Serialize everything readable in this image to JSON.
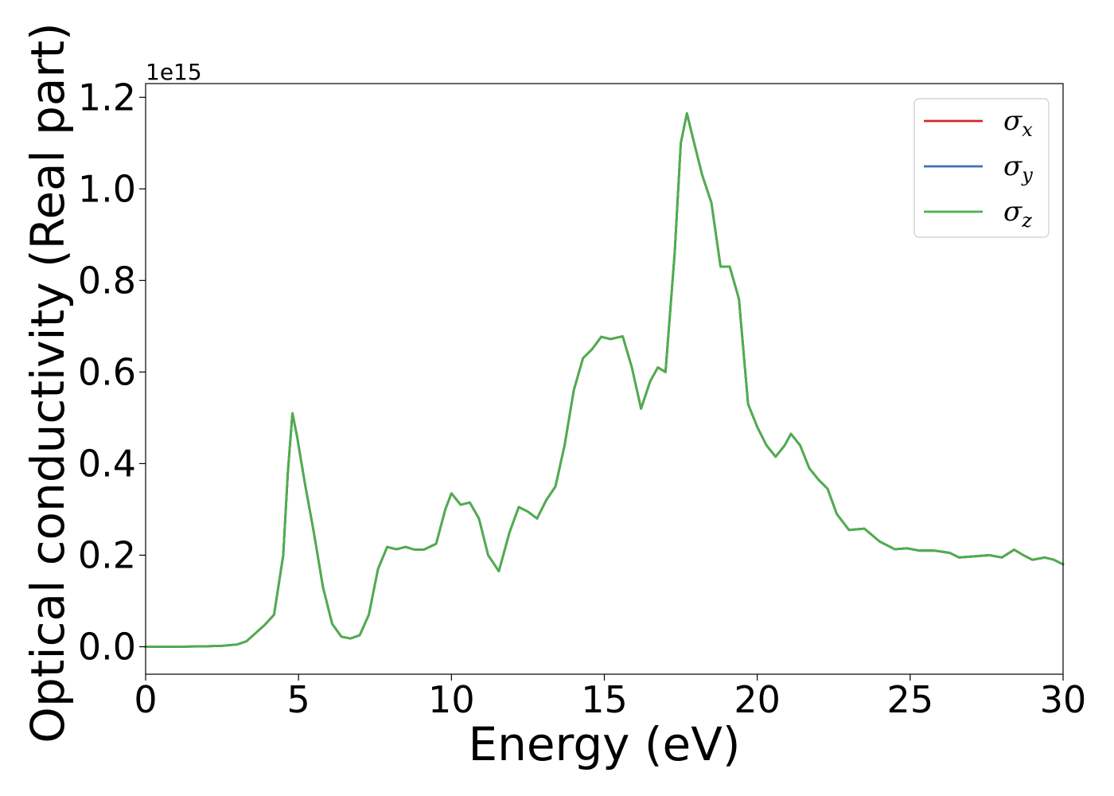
{
  "chart_data": {
    "type": "line",
    "xlabel": "Energy (eV)",
    "ylabel": "Optical conductivity (Real part)",
    "y_offset_text": "1e15",
    "y_scale_factor": 1000000000000000.0,
    "xlim": [
      0,
      30
    ],
    "ylim": [
      -0.06,
      1.23
    ],
    "x_ticks": [
      0,
      5,
      10,
      15,
      20,
      25,
      30
    ],
    "x_tick_labels": [
      "0",
      "5",
      "10",
      "15",
      "20",
      "25",
      "30"
    ],
    "y_ticks": [
      0.0,
      0.2,
      0.4,
      0.6,
      0.8,
      1.0,
      1.2
    ],
    "y_tick_labels": [
      "0.0",
      "0.2",
      "0.4",
      "0.6",
      "0.8",
      "1.0",
      "1.2"
    ],
    "grid": false,
    "legend_position": "top-right",
    "series": [
      {
        "legend_symbol": "σ",
        "legend_subscript": "x",
        "color": "#d62728",
        "x": [
          0,
          1,
          2,
          2.5,
          3,
          3.3,
          3.6,
          3.9,
          4.2,
          4.5,
          4.65,
          4.8,
          4.95,
          5.2,
          5.5,
          5.8,
          6.1,
          6.4,
          6.7,
          7.0,
          7.3,
          7.6,
          7.9,
          8.2,
          8.5,
          8.8,
          9.1,
          9.5,
          9.8,
          10.0,
          10.3,
          10.6,
          10.9,
          11.2,
          11.55,
          11.9,
          12.2,
          12.5,
          12.8,
          13.1,
          13.4,
          13.7,
          14.0,
          14.3,
          14.6,
          14.9,
          15.2,
          15.6,
          15.9,
          16.2,
          16.5,
          16.75,
          17.0,
          17.3,
          17.5,
          17.7,
          17.9,
          18.2,
          18.5,
          18.8,
          19.1,
          19.4,
          19.7,
          20.0,
          20.3,
          20.6,
          20.9,
          21.1,
          21.4,
          21.7,
          22.0,
          22.3,
          22.6,
          23.0,
          23.5,
          24.0,
          24.5,
          24.9,
          25.3,
          25.8,
          26.3,
          26.6,
          27.0,
          27.6,
          28.0,
          28.4,
          28.7,
          29.0,
          29.4,
          29.7,
          30.0
        ],
        "y": [
          0.0,
          0.0,
          0.001,
          0.002,
          0.005,
          0.012,
          0.03,
          0.048,
          0.07,
          0.2,
          0.38,
          0.51,
          0.46,
          0.36,
          0.25,
          0.13,
          0.05,
          0.022,
          0.018,
          0.025,
          0.07,
          0.17,
          0.218,
          0.213,
          0.218,
          0.212,
          0.212,
          0.225,
          0.3,
          0.335,
          0.31,
          0.315,
          0.28,
          0.2,
          0.165,
          0.25,
          0.305,
          0.295,
          0.28,
          0.32,
          0.35,
          0.44,
          0.56,
          0.63,
          0.65,
          0.677,
          0.672,
          0.678,
          0.61,
          0.52,
          0.58,
          0.61,
          0.6,
          0.86,
          1.1,
          1.165,
          1.11,
          1.03,
          0.97,
          0.83,
          0.83,
          0.76,
          0.53,
          0.48,
          0.44,
          0.415,
          0.44,
          0.465,
          0.44,
          0.39,
          0.365,
          0.345,
          0.29,
          0.255,
          0.258,
          0.23,
          0.213,
          0.215,
          0.21,
          0.21,
          0.205,
          0.195,
          0.197,
          0.2,
          0.195,
          0.212,
          0.2,
          0.19,
          0.195,
          0.19,
          0.18
        ]
      },
      {
        "legend_symbol": "σ",
        "legend_subscript": "y",
        "color": "#3b75af",
        "x": [
          0,
          1,
          2,
          2.5,
          3,
          3.3,
          3.6,
          3.9,
          4.2,
          4.5,
          4.65,
          4.8,
          4.95,
          5.2,
          5.5,
          5.8,
          6.1,
          6.4,
          6.7,
          7.0,
          7.3,
          7.6,
          7.9,
          8.2,
          8.5,
          8.8,
          9.1,
          9.5,
          9.8,
          10.0,
          10.3,
          10.6,
          10.9,
          11.2,
          11.55,
          11.9,
          12.2,
          12.5,
          12.8,
          13.1,
          13.4,
          13.7,
          14.0,
          14.3,
          14.6,
          14.9,
          15.2,
          15.6,
          15.9,
          16.2,
          16.5,
          16.75,
          17.0,
          17.3,
          17.5,
          17.7,
          17.9,
          18.2,
          18.5,
          18.8,
          19.1,
          19.4,
          19.7,
          20.0,
          20.3,
          20.6,
          20.9,
          21.1,
          21.4,
          21.7,
          22.0,
          22.3,
          22.6,
          23.0,
          23.5,
          24.0,
          24.5,
          24.9,
          25.3,
          25.8,
          26.3,
          26.6,
          27.0,
          27.6,
          28.0,
          28.4,
          28.7,
          29.0,
          29.4,
          29.7,
          30.0
        ],
        "y": [
          0.0,
          0.0,
          0.001,
          0.002,
          0.005,
          0.012,
          0.03,
          0.048,
          0.07,
          0.2,
          0.38,
          0.51,
          0.46,
          0.36,
          0.25,
          0.13,
          0.05,
          0.022,
          0.018,
          0.025,
          0.07,
          0.17,
          0.218,
          0.213,
          0.218,
          0.212,
          0.212,
          0.225,
          0.3,
          0.335,
          0.31,
          0.315,
          0.28,
          0.2,
          0.165,
          0.25,
          0.305,
          0.295,
          0.28,
          0.32,
          0.35,
          0.44,
          0.56,
          0.63,
          0.65,
          0.677,
          0.672,
          0.678,
          0.61,
          0.52,
          0.58,
          0.61,
          0.6,
          0.86,
          1.1,
          1.165,
          1.11,
          1.03,
          0.97,
          0.83,
          0.83,
          0.76,
          0.53,
          0.48,
          0.44,
          0.415,
          0.44,
          0.465,
          0.44,
          0.39,
          0.365,
          0.345,
          0.29,
          0.255,
          0.258,
          0.23,
          0.213,
          0.215,
          0.21,
          0.21,
          0.205,
          0.195,
          0.197,
          0.2,
          0.195,
          0.212,
          0.2,
          0.19,
          0.195,
          0.19,
          0.18
        ]
      },
      {
        "legend_symbol": "σ",
        "legend_subscript": "z",
        "color": "#4daf4a",
        "x": [
          0,
          1,
          2,
          2.5,
          3,
          3.3,
          3.6,
          3.9,
          4.2,
          4.5,
          4.65,
          4.8,
          4.95,
          5.2,
          5.5,
          5.8,
          6.1,
          6.4,
          6.7,
          7.0,
          7.3,
          7.6,
          7.9,
          8.2,
          8.5,
          8.8,
          9.1,
          9.5,
          9.8,
          10.0,
          10.3,
          10.6,
          10.9,
          11.2,
          11.55,
          11.9,
          12.2,
          12.5,
          12.8,
          13.1,
          13.4,
          13.7,
          14.0,
          14.3,
          14.6,
          14.9,
          15.2,
          15.6,
          15.9,
          16.2,
          16.5,
          16.75,
          17.0,
          17.3,
          17.5,
          17.7,
          17.9,
          18.2,
          18.5,
          18.8,
          19.1,
          19.4,
          19.7,
          20.0,
          20.3,
          20.6,
          20.9,
          21.1,
          21.4,
          21.7,
          22.0,
          22.3,
          22.6,
          23.0,
          23.5,
          24.0,
          24.5,
          24.9,
          25.3,
          25.8,
          26.3,
          26.6,
          27.0,
          27.6,
          28.0,
          28.4,
          28.7,
          29.0,
          29.4,
          29.7,
          30.0
        ],
        "y": [
          0.0,
          0.0,
          0.001,
          0.002,
          0.005,
          0.012,
          0.03,
          0.048,
          0.07,
          0.2,
          0.38,
          0.51,
          0.46,
          0.36,
          0.25,
          0.13,
          0.05,
          0.022,
          0.018,
          0.025,
          0.07,
          0.17,
          0.218,
          0.213,
          0.218,
          0.212,
          0.212,
          0.225,
          0.3,
          0.335,
          0.31,
          0.315,
          0.28,
          0.2,
          0.165,
          0.25,
          0.305,
          0.295,
          0.28,
          0.32,
          0.35,
          0.44,
          0.56,
          0.63,
          0.65,
          0.677,
          0.672,
          0.678,
          0.61,
          0.52,
          0.58,
          0.61,
          0.6,
          0.86,
          1.1,
          1.165,
          1.11,
          1.03,
          0.97,
          0.83,
          0.83,
          0.76,
          0.53,
          0.48,
          0.44,
          0.415,
          0.44,
          0.465,
          0.44,
          0.39,
          0.365,
          0.345,
          0.29,
          0.255,
          0.258,
          0.23,
          0.213,
          0.215,
          0.21,
          0.21,
          0.205,
          0.195,
          0.197,
          0.2,
          0.195,
          0.212,
          0.2,
          0.19,
          0.195,
          0.19,
          0.18
        ]
      }
    ]
  }
}
